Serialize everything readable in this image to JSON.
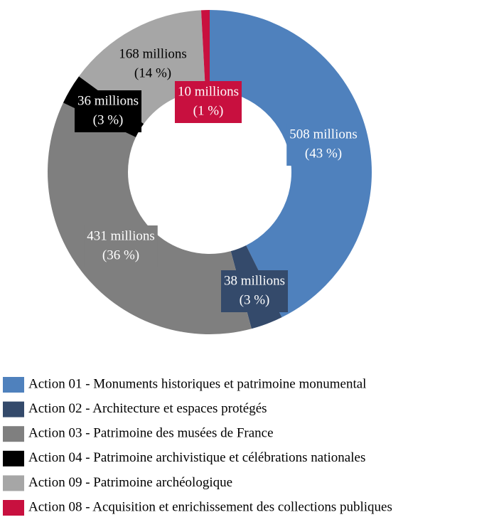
{
  "chart_data": {
    "type": "donut",
    "categories": [
      "Action 01 - Monuments historiques et patrimoine monumental",
      "Action 02 - Architecture et espaces protégés",
      "Action 03 - Patrimoine des musées de France",
      "Action 04 - Patrimoine archivistique et célébrations nationales",
      "Action 09 - Patrimoine archéologique",
      "Action 08 - Acquisition et enrichissement des collections publiques"
    ],
    "values": [
      508,
      38,
      431,
      36,
      168,
      10
    ],
    "value_labels": [
      "508 millions",
      "38 millions",
      "431 millions",
      "36 millions",
      "168 millions",
      "10 millions"
    ],
    "percent_labels": [
      "(43 %)",
      "(3 %)",
      "(36 %)",
      "(3 %)",
      "(14 %)",
      "(1 %)"
    ],
    "colors": [
      "#4f81bd",
      "#344a6b",
      "#7f7f7f",
      "#000000",
      "#a6a6a6",
      "#c8103f"
    ]
  }
}
